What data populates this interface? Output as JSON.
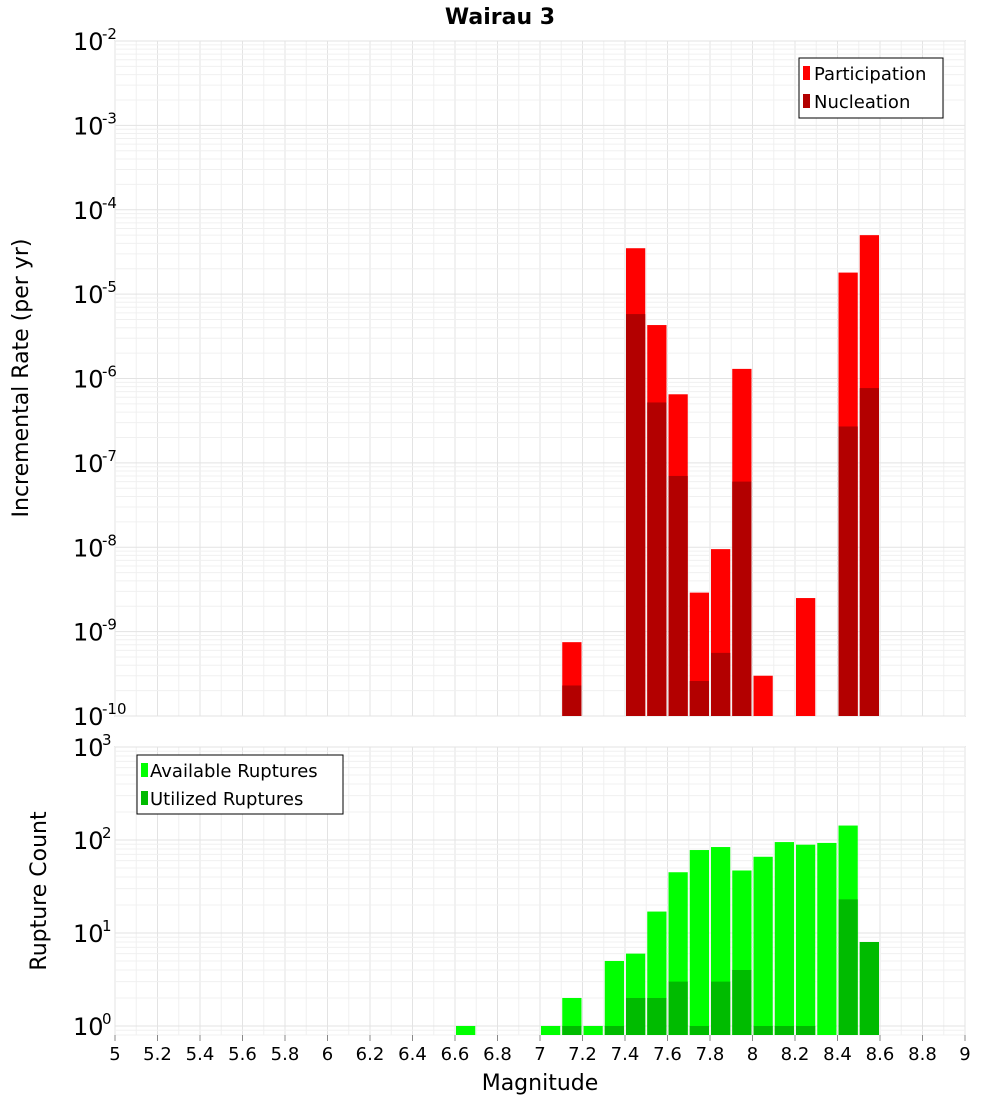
{
  "chart_data": [
    {
      "type": "bar",
      "title": "Wairau 3",
      "xlabel": "Magnitude",
      "ylabel": "Incremental Rate (per yr)",
      "yscale": "log",
      "ylim": [
        1e-10,
        0.01
      ],
      "xlim": [
        5,
        9
      ],
      "grid": true,
      "legend_position": "top-right",
      "bin_centers": [
        7.15,
        7.45,
        7.55,
        7.65,
        7.75,
        7.85,
        7.95,
        8.05,
        8.25,
        8.45,
        8.55
      ],
      "series": [
        {
          "name": "Participation",
          "color": "#ff0000",
          "values": [
            7.5e-10,
            3.5e-05,
            4.3e-06,
            6.5e-07,
            2.9e-09,
            9.5e-09,
            1.3e-06,
            3e-10,
            2.5e-09,
            1.8e-05,
            5e-05
          ]
        },
        {
          "name": "Nucleation",
          "color": "#b30000",
          "values": [
            2.3e-10,
            5.8e-06,
            5.2e-07,
            7e-08,
            2.6e-10,
            5.6e-10,
            6e-08,
            null,
            null,
            2.7e-07,
            7.7e-07
          ]
        }
      ]
    },
    {
      "type": "bar",
      "xlabel": "Magnitude",
      "ylabel": "Rupture Count",
      "yscale": "log",
      "ylim": [
        0.8,
        1000
      ],
      "xlim": [
        5,
        9
      ],
      "grid": true,
      "legend_position": "top-left",
      "bin_centers": [
        6.65,
        7.05,
        7.15,
        7.25,
        7.35,
        7.45,
        7.55,
        7.65,
        7.75,
        7.85,
        7.95,
        8.05,
        8.15,
        8.25,
        8.35,
        8.45,
        8.55
      ],
      "series": [
        {
          "name": "Available Ruptures",
          "color": "#00ff00",
          "values": [
            1,
            1,
            2,
            1,
            5,
            6,
            17,
            45,
            78,
            84,
            47,
            66,
            95,
            89,
            93,
            143,
            8
          ]
        },
        {
          "name": "Utilized Ruptures",
          "color": "#00bb00",
          "values": [
            null,
            null,
            1,
            null,
            1,
            2,
            2,
            3,
            1,
            3,
            4,
            1,
            1,
            1,
            null,
            23,
            8
          ]
        }
      ]
    }
  ],
  "x_ticks": [
    "5",
    "5.2",
    "5.4",
    "5.6",
    "5.8",
    "6",
    "6.2",
    "6.4",
    "6.6",
    "6.8",
    "7",
    "7.2",
    "7.4",
    "7.6",
    "7.8",
    "8",
    "8.2",
    "8.4",
    "8.6",
    "8.8",
    "9"
  ],
  "top_y_exponents": [
    "-10",
    "-9",
    "-8",
    "-7",
    "-6",
    "-5",
    "-4",
    "-3",
    "-2"
  ],
  "bottom_y_exponents": [
    "0",
    "1",
    "2",
    "3"
  ],
  "y_tick_base": "10"
}
